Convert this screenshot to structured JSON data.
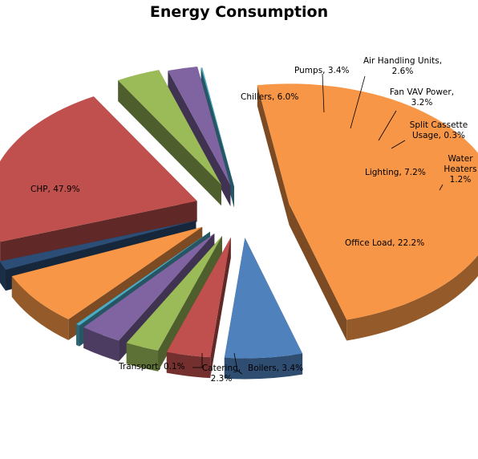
{
  "chart_data": {
    "type": "pie",
    "title": "Energy Consumption",
    "three_d": true,
    "exploded": true,
    "legend": "none",
    "series": [
      {
        "name": "",
        "slices": [
          {
            "category": "Chillers",
            "value": 6.0,
            "label": "Chillers, 6.0%",
            "color": "#4F81BD"
          },
          {
            "category": "Pumps",
            "value": 3.4,
            "label": "Pumps, 3.4%",
            "color": "#C0504D"
          },
          {
            "category": "Air Handling Units",
            "value": 2.6,
            "label_lines": [
              "Air Handling Units,",
              "2.6%"
            ],
            "color": "#9BBB59"
          },
          {
            "category": "Fan VAV Power",
            "value": 3.2,
            "label_lines": [
              "Fan VAV Power,",
              "3.2%"
            ],
            "color": "#8064A2"
          },
          {
            "category": "Split Cassette Usage",
            "value": 0.3,
            "label_lines": [
              "Split Cassette",
              "Usage, 0.3%"
            ],
            "color": "#4BACC6"
          },
          {
            "category": "Lighting",
            "value": 7.2,
            "label": "Lighting, 7.2%",
            "color": "#F79646"
          },
          {
            "category": "Water Heaters",
            "value": 1.2,
            "label_lines": [
              "Water",
              "Heaters",
              "1.2%"
            ],
            "color": "#2C4D75"
          },
          {
            "category": "Office Load",
            "value": 22.2,
            "label": "Office Load, 22.2%",
            "color": "#C0504D"
          },
          {
            "category": "Boilers",
            "value": 3.4,
            "label": "Boilers, 3.4%",
            "color": "#9BBB59"
          },
          {
            "category": "Catering",
            "value": 2.3,
            "label_lines": [
              "Catering,",
              "2.3%"
            ],
            "color": "#8064A2"
          },
          {
            "category": "Transport",
            "value": 0.1,
            "label": "Transport, 0.1%",
            "color": "#4BACC6"
          },
          {
            "category": "CHP",
            "value": 47.9,
            "label": "CHP, 47.9%",
            "color": "#F79646"
          }
        ]
      }
    ]
  }
}
